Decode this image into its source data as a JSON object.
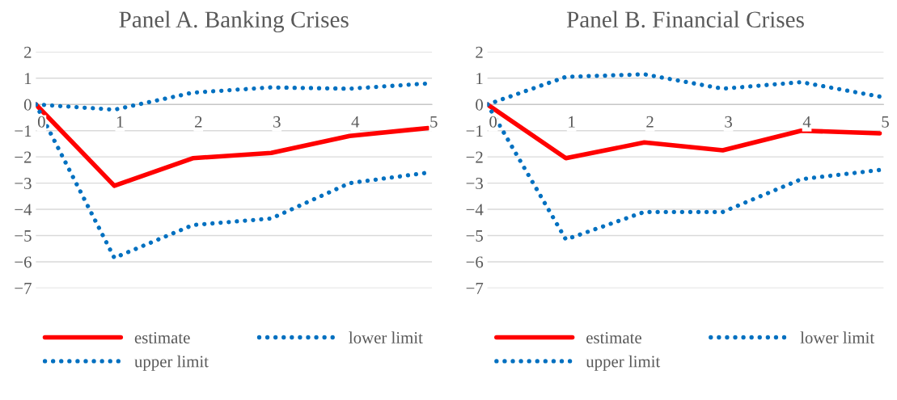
{
  "chart_data": [
    {
      "type": "line",
      "title": "Panel A. Banking Crises",
      "categories": [
        "0",
        "1",
        "2",
        "3",
        "4",
        "5"
      ],
      "ylim": [
        -7,
        2
      ],
      "yticks": [
        -7,
        -6,
        -5,
        -4,
        -3,
        -2,
        -1,
        0,
        1,
        2
      ],
      "grid": "y",
      "legend": "bottom",
      "marker": "none",
      "series": [
        {
          "name": "estimate",
          "color": "#ff0000",
          "line_style": "solid",
          "values": [
            0,
            -3.1,
            -2.05,
            -1.85,
            -1.2,
            -0.9
          ]
        },
        {
          "name": "lower limit",
          "color": "#0070c0",
          "line_style": "dotted",
          "values": [
            0,
            -5.85,
            -4.6,
            -4.35,
            -3.0,
            -2.6
          ]
        },
        {
          "name": "upper limit",
          "color": "#0070c0",
          "line_style": "dotted",
          "values": [
            0,
            -0.2,
            0.45,
            0.65,
            0.6,
            0.8
          ]
        }
      ]
    },
    {
      "type": "line",
      "title": "Panel B. Financial Crises",
      "categories": [
        "0",
        "1",
        "2",
        "3",
        "4",
        "5"
      ],
      "ylim": [
        -7,
        2
      ],
      "yticks": [
        -7,
        -6,
        -5,
        -4,
        -3,
        -2,
        -1,
        0,
        1,
        2
      ],
      "grid": "y",
      "legend": "bottom",
      "marker": "none",
      "series": [
        {
          "name": "estimate",
          "color": "#ff0000",
          "line_style": "solid",
          "values": [
            0,
            -2.05,
            -1.45,
            -1.75,
            -1.0,
            -1.1
          ]
        },
        {
          "name": "lower limit",
          "color": "#0070c0",
          "line_style": "dotted",
          "values": [
            0,
            -5.15,
            -4.1,
            -4.1,
            -2.85,
            -2.5
          ]
        },
        {
          "name": "upper limit",
          "color": "#0070c0",
          "line_style": "dotted",
          "values": [
            0,
            1.05,
            1.15,
            0.6,
            0.85,
            0.3
          ]
        }
      ]
    }
  ]
}
